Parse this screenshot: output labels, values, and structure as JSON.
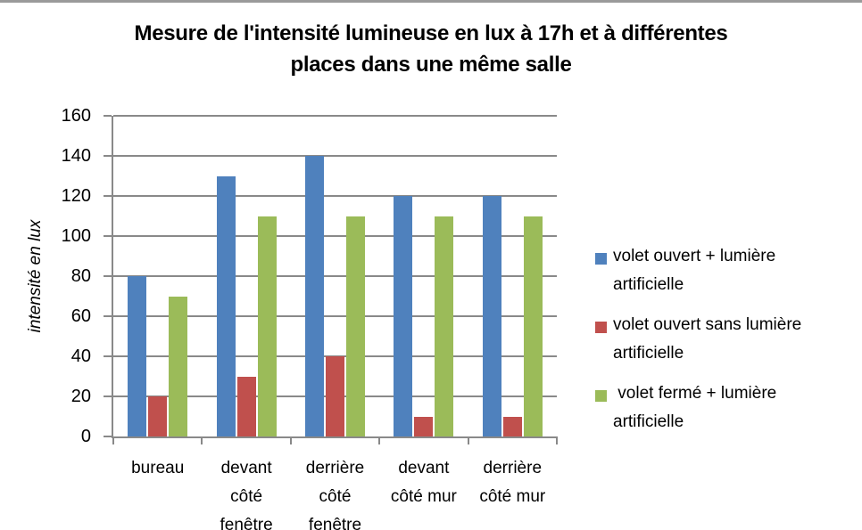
{
  "page": {
    "background": "#ffffff",
    "top_border_color": "#9a9a9a"
  },
  "chart_data": {
    "type": "bar",
    "title": "Mesure de l'intensité lumineuse en lux à 17h et à différentes places dans une même salle",
    "title_display": "Mesure de l'intensité lumineuse en lux à 17h et à différentes\nplaces dans une même salle",
    "ylabel": "intensité en lux",
    "xlabel": "",
    "categories": [
      "bureau",
      "devant côté fenêtre",
      "derrière côté fenêtre",
      "devant côté mur",
      "derrière côté mur"
    ],
    "categories_display": [
      "bureau",
      "devant\ncôté\nfenêtre",
      "derrière\ncôté\nfenêtre",
      "devant\ncôté mur",
      "derrière\ncôté mur"
    ],
    "series": [
      {
        "name": "volet ouvert + lumière artificielle",
        "legend_display": "volet ouvert + lumière\nartificielle",
        "color": "#4f81bd",
        "values": [
          80,
          130,
          140,
          120,
          120
        ]
      },
      {
        "name": "volet ouvert sans lumière artificielle",
        "legend_display": "volet ouvert sans lumière\nartificielle",
        "color": "#c0504d",
        "values": [
          20,
          30,
          40,
          10,
          10
        ]
      },
      {
        "name": " volet fermé + lumière artificielle",
        "legend_display": " volet fermé + lumière\nartificielle",
        "color": "#9bbb59",
        "values": [
          70,
          110,
          110,
          110,
          110
        ]
      }
    ],
    "ylim": [
      0,
      160
    ],
    "yticks": [
      0,
      20,
      40,
      60,
      80,
      100,
      120,
      140,
      160
    ],
    "grid": true,
    "legend_position": "right",
    "axis_color": "#898989",
    "gridline_color": "#898989"
  }
}
